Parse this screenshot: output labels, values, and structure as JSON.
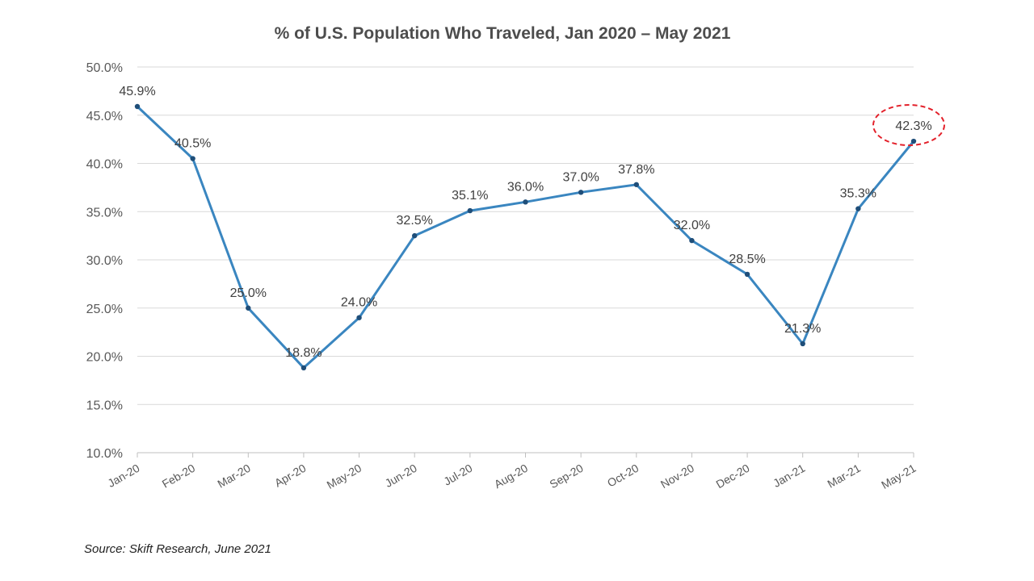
{
  "chart_data": {
    "type": "line",
    "title": "% of U.S. Population Who Traveled, Jan 2020 – May 2021",
    "xlabel": "",
    "ylabel": "",
    "categories": [
      "Jan-20",
      "Feb-20",
      "Mar-20",
      "Apr-20",
      "May-20",
      "Jun-20",
      "Jul-20",
      "Aug-20",
      "Sep-20",
      "Oct-20",
      "Nov-20",
      "Dec-20",
      "Jan-21",
      "Mar-21",
      "May-21"
    ],
    "values": [
      45.9,
      40.5,
      25.0,
      18.8,
      24.0,
      32.5,
      35.1,
      36.0,
      37.0,
      37.8,
      32.0,
      28.5,
      21.3,
      35.3,
      42.3
    ],
    "data_labels": [
      "45.9%",
      "40.5%",
      "25.0%",
      "18.8%",
      "24.0%",
      "32.5%",
      "35.1%",
      "36.0%",
      "37.0%",
      "37.8%",
      "32.0%",
      "28.5%",
      "21.3%",
      "35.3%",
      "42.3%"
    ],
    "y_ticks": [
      "10.0%",
      "15.0%",
      "20.0%",
      "25.0%",
      "30.0%",
      "35.0%",
      "40.0%",
      "45.0%",
      "50.0%"
    ],
    "ylim": [
      10,
      50
    ],
    "grid": true,
    "highlight": {
      "category": "May-21",
      "style": "dashed-ellipse"
    },
    "colors": {
      "line": "#3a86c0",
      "marker": "#1f4e79",
      "grid": "#d9d9d9",
      "highlight": "#e3202a"
    }
  },
  "source": "Source: Skift Research, June 2021"
}
